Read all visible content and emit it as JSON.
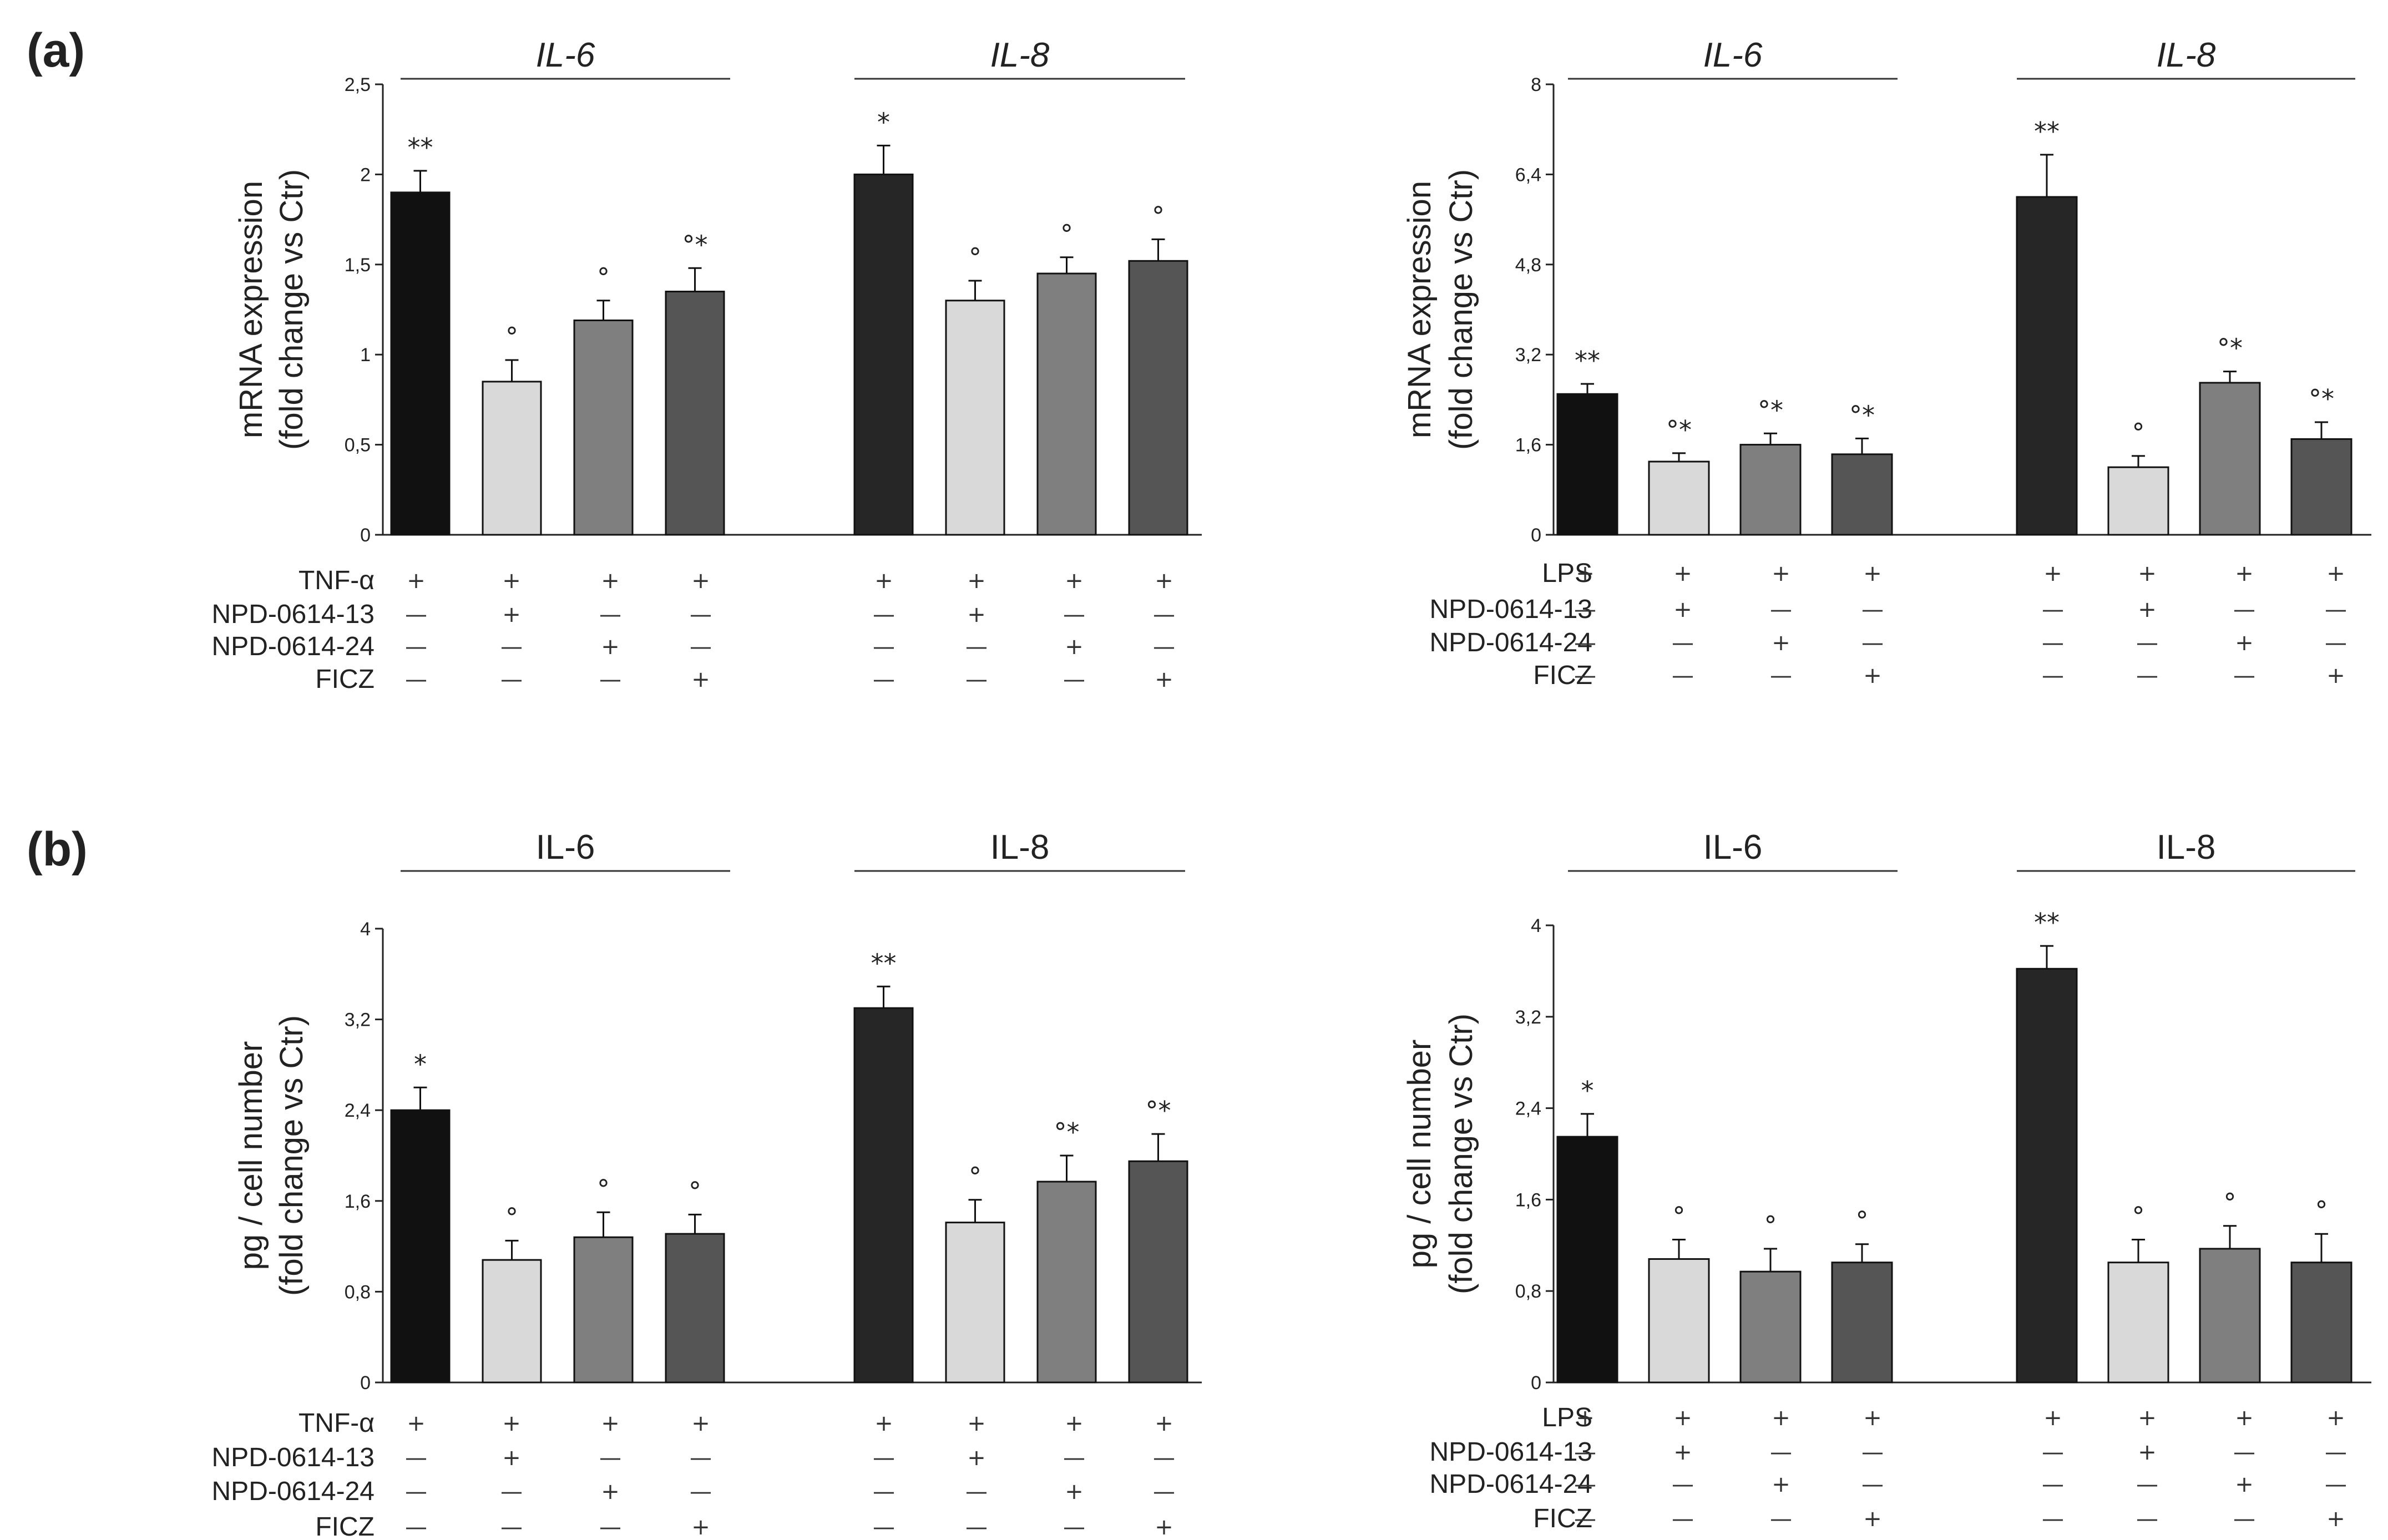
{
  "chart_data": [
    {
      "type": "bar",
      "panel_label": "(a)",
      "title": "",
      "xlabel": "",
      "ylabel": [
        "mRNA expression",
        "(fold change vs Ctr)"
      ],
      "ylim": [
        0,
        2.5
      ],
      "yticks": [
        "0",
        "0,5",
        "1",
        "1,5",
        "2",
        "2,5"
      ],
      "ytick_values": [
        0,
        0.5,
        1,
        1.5,
        2,
        2.5
      ],
      "groups": [
        {
          "label": "IL-6",
          "italic": true,
          "values": [
            1.9,
            0.85,
            1.19,
            1.35
          ],
          "errors": [
            0.12,
            0.12,
            0.11,
            0.13
          ],
          "annotations": [
            "**",
            "°",
            "°",
            "°*"
          ]
        },
        {
          "label": "IL-8",
          "italic": true,
          "values": [
            2.0,
            1.3,
            1.45,
            1.52
          ],
          "errors": [
            0.16,
            0.11,
            0.09,
            0.12
          ],
          "annotations": [
            "*",
            "°",
            "°",
            "°"
          ]
        }
      ],
      "bar_colors": [
        "#111111",
        "#d9d9d9",
        "#7f7f7f",
        "#555555"
      ],
      "group2_first_color": "#262626",
      "treatments": [
        {
          "name": "TNF-α",
          "signs": [
            "+",
            "+",
            "+",
            "+"
          ]
        },
        {
          "name": "NPD-0614-13",
          "signs": [
            "—",
            "+",
            "—",
            "—"
          ]
        },
        {
          "name": "NPD-0614-24",
          "signs": [
            "—",
            "—",
            "+",
            "—"
          ]
        },
        {
          "name": "FICZ",
          "signs": [
            "—",
            "—",
            "—",
            "+"
          ]
        }
      ]
    },
    {
      "type": "bar",
      "panel_label": "",
      "title": "",
      "xlabel": "",
      "ylabel": [
        "mRNA expression",
        "(fold change vs Ctr)"
      ],
      "ylim": [
        0,
        8
      ],
      "yticks": [
        "0",
        "1,6",
        "3,2",
        "4,8",
        "6,4",
        "8"
      ],
      "ytick_values": [
        0,
        1.6,
        3.2,
        4.8,
        6.4,
        8
      ],
      "groups": [
        {
          "label": "IL-6",
          "italic": true,
          "values": [
            2.5,
            1.3,
            1.6,
            1.43
          ],
          "errors": [
            0.18,
            0.15,
            0.2,
            0.28
          ],
          "annotations": [
            "**",
            "°*",
            "°*",
            "°*"
          ]
        },
        {
          "label": "IL-8",
          "italic": true,
          "values": [
            6.0,
            1.2,
            2.7,
            1.7
          ],
          "errors": [
            0.75,
            0.2,
            0.2,
            0.3
          ],
          "annotations": [
            "**",
            "°",
            "°*",
            "°*"
          ]
        }
      ],
      "bar_colors": [
        "#111111",
        "#d9d9d9",
        "#7f7f7f",
        "#555555"
      ],
      "group2_first_color": "#262626",
      "treatments": [
        {
          "name": "LPS",
          "signs": [
            "+",
            "+",
            "+",
            "+"
          ]
        },
        {
          "name": "NPD-0614-13",
          "signs": [
            "—",
            "+",
            "—",
            "—"
          ]
        },
        {
          "name": "NPD-0614-24",
          "signs": [
            "—",
            "—",
            "+",
            "—"
          ]
        },
        {
          "name": "FICZ",
          "signs": [
            "—",
            "—",
            "—",
            "+"
          ]
        }
      ]
    },
    {
      "type": "bar",
      "panel_label": "(b)",
      "title": "",
      "xlabel": "",
      "ylabel": [
        "pg / cell number",
        "(fold change vs Ctr)"
      ],
      "ylim": [
        0,
        4
      ],
      "yticks": [
        "0",
        "0,8",
        "1,6",
        "2,4",
        "3,2",
        "4"
      ],
      "ytick_values": [
        0,
        0.8,
        1.6,
        2.4,
        3.2,
        4
      ],
      "groups": [
        {
          "label": "IL-6",
          "italic": false,
          "values": [
            2.4,
            1.08,
            1.28,
            1.31
          ],
          "errors": [
            0.2,
            0.17,
            0.22,
            0.17
          ],
          "annotations": [
            "*",
            "°",
            "°",
            "°"
          ]
        },
        {
          "label": "IL-8",
          "italic": false,
          "values": [
            3.3,
            1.41,
            1.77,
            1.95
          ],
          "errors": [
            0.19,
            0.2,
            0.23,
            0.24
          ],
          "annotations": [
            "**",
            "°",
            "°*",
            "°*"
          ]
        }
      ],
      "bar_colors": [
        "#111111",
        "#d9d9d9",
        "#7f7f7f",
        "#555555"
      ],
      "group2_first_color": "#262626",
      "treatments": [
        {
          "name": "TNF-α",
          "signs": [
            "+",
            "+",
            "+",
            "+"
          ]
        },
        {
          "name": "NPD-0614-13",
          "signs": [
            "—",
            "+",
            "—",
            "—"
          ]
        },
        {
          "name": "NPD-0614-24",
          "signs": [
            "—",
            "—",
            "+",
            "—"
          ]
        },
        {
          "name": "FICZ",
          "signs": [
            "—",
            "—",
            "—",
            "+"
          ]
        }
      ]
    },
    {
      "type": "bar",
      "panel_label": "",
      "title": "",
      "xlabel": "",
      "ylabel": [
        "pg / cell number",
        "(fold change vs Ctr)"
      ],
      "ylim": [
        0,
        4
      ],
      "yticks": [
        "0",
        "0,8",
        "1,6",
        "2,4",
        "3,2",
        "4"
      ],
      "ytick_values": [
        0,
        0.8,
        1.6,
        2.4,
        3.2,
        4
      ],
      "groups": [
        {
          "label": "IL-6",
          "italic": false,
          "values": [
            2.15,
            1.08,
            0.97,
            1.05
          ],
          "errors": [
            0.2,
            0.17,
            0.2,
            0.16
          ],
          "annotations": [
            "*",
            "°",
            "°",
            "°"
          ]
        },
        {
          "label": "IL-8",
          "italic": false,
          "values": [
            3.62,
            1.05,
            1.17,
            1.05
          ],
          "errors": [
            0.2,
            0.2,
            0.2,
            0.25
          ],
          "annotations": [
            "**",
            "°",
            "°",
            "°"
          ]
        }
      ],
      "bar_colors": [
        "#111111",
        "#d9d9d9",
        "#7f7f7f",
        "#555555"
      ],
      "group2_first_color": "#262626",
      "treatments": [
        {
          "name": "LPS",
          "signs": [
            "+",
            "+",
            "+",
            "+"
          ]
        },
        {
          "name": "NPD-0614-13",
          "signs": [
            "—",
            "+",
            "—",
            "—"
          ]
        },
        {
          "name": "NPD-0614-24",
          "signs": [
            "—",
            "—",
            "+",
            "—"
          ]
        },
        {
          "name": "FICZ",
          "signs": [
            "—",
            "—",
            "—",
            "+"
          ]
        }
      ]
    }
  ]
}
